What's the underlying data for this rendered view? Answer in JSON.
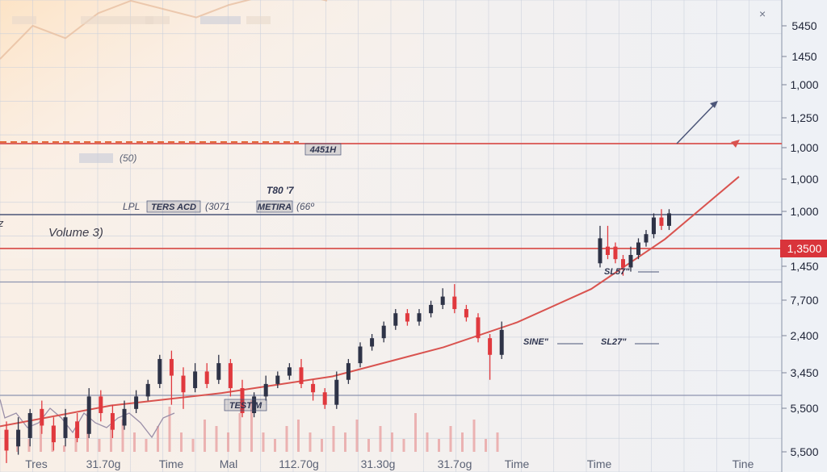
{
  "header": {
    "top_labels": [
      "",
      "",
      "",
      ""
    ],
    "close_glyph": "×"
  },
  "annotations": {
    "volume_label": "Volume 3)",
    "tag_1": "4451H",
    "tag_2": "T80 '7",
    "legend_left_prefix": "LPL",
    "legend_left_tag": "TERS ACD",
    "legend_left_value": "(3071",
    "legend_right_tag": "METIRA",
    "legend_right_value": "(66º",
    "small_mid": "(50)",
    "marker_1": "SL57\"",
    "marker_2": "SINE\"",
    "marker_3": "SL27\"",
    "testim_tag": "TESTIM",
    "left_cut": "z"
  },
  "y_axis": {
    "ticks": [
      "5450",
      "1450",
      "1,000",
      "1,250",
      "1,000",
      "1,000",
      "1,000",
      "1,3500",
      "1,450",
      "7,700",
      "2,400",
      "3,450",
      "5,500",
      "5,500"
    ],
    "highlight_index": 7
  },
  "x_axis": {
    "ticks": [
      "Tres",
      "31.70g",
      "Time",
      "Mal",
      "112.70g",
      "31.30g",
      "31.7og",
      "Time",
      "Time",
      "Tine"
    ]
  },
  "colors": {
    "up": "#2e3347",
    "down": "#e0393e",
    "trend": "#d9534f",
    "grid": "#c9d0dc",
    "volume": "#e9a3a3"
  },
  "chart_data": {
    "type": "candlestick",
    "candles": [
      {
        "o": 1300,
        "c": 1250,
        "h": 1320,
        "l": 1220
      },
      {
        "o": 1260,
        "c": 1300,
        "h": 1330,
        "l": 1240
      },
      {
        "o": 1280,
        "c": 1340,
        "h": 1350,
        "l": 1260
      },
      {
        "o": 1350,
        "c": 1310,
        "h": 1370,
        "l": 1290
      },
      {
        "o": 1310,
        "c": 1270,
        "h": 1330,
        "l": 1250
      },
      {
        "o": 1280,
        "c": 1330,
        "h": 1350,
        "l": 1260
      },
      {
        "o": 1320,
        "c": 1280,
        "h": 1340,
        "l": 1270
      },
      {
        "o": 1290,
        "c": 1380,
        "h": 1400,
        "l": 1280
      },
      {
        "o": 1380,
        "c": 1340,
        "h": 1395,
        "l": 1320
      },
      {
        "o": 1340,
        "c": 1300,
        "h": 1360,
        "l": 1280
      },
      {
        "o": 1310,
        "c": 1350,
        "h": 1370,
        "l": 1300
      },
      {
        "o": 1350,
        "c": 1380,
        "h": 1395,
        "l": 1340
      },
      {
        "o": 1380,
        "c": 1410,
        "h": 1420,
        "l": 1370
      },
      {
        "o": 1410,
        "c": 1470,
        "h": 1480,
        "l": 1400
      },
      {
        "o": 1470,
        "c": 1430,
        "h": 1490,
        "l": 1360
      },
      {
        "o": 1430,
        "c": 1390,
        "h": 1450,
        "l": 1350
      },
      {
        "o": 1400,
        "c": 1440,
        "h": 1460,
        "l": 1390
      },
      {
        "o": 1440,
        "c": 1410,
        "h": 1460,
        "l": 1400
      },
      {
        "o": 1420,
        "c": 1460,
        "h": 1480,
        "l": 1410
      },
      {
        "o": 1460,
        "c": 1400,
        "h": 1470,
        "l": 1380
      },
      {
        "o": 1400,
        "c": 1340,
        "h": 1420,
        "l": 1330
      },
      {
        "o": 1340,
        "c": 1380,
        "h": 1390,
        "l": 1330
      },
      {
        "o": 1380,
        "c": 1410,
        "h": 1430,
        "l": 1370
      },
      {
        "o": 1410,
        "c": 1430,
        "h": 1440,
        "l": 1400
      },
      {
        "o": 1430,
        "c": 1450,
        "h": 1460,
        "l": 1420
      },
      {
        "o": 1450,
        "c": 1410,
        "h": 1470,
        "l": 1400
      },
      {
        "o": 1410,
        "c": 1390,
        "h": 1420,
        "l": 1370
      },
      {
        "o": 1390,
        "c": 1360,
        "h": 1400,
        "l": 1350
      },
      {
        "o": 1360,
        "c": 1420,
        "h": 1440,
        "l": 1350
      },
      {
        "o": 1420,
        "c": 1460,
        "h": 1470,
        "l": 1410
      },
      {
        "o": 1460,
        "c": 1500,
        "h": 1510,
        "l": 1450
      },
      {
        "o": 1500,
        "c": 1520,
        "h": 1530,
        "l": 1490
      },
      {
        "o": 1520,
        "c": 1550,
        "h": 1560,
        "l": 1510
      },
      {
        "o": 1550,
        "c": 1580,
        "h": 1590,
        "l": 1540
      },
      {
        "o": 1580,
        "c": 1560,
        "h": 1590,
        "l": 1550
      },
      {
        "o": 1560,
        "c": 1580,
        "h": 1590,
        "l": 1550
      },
      {
        "o": 1580,
        "c": 1600,
        "h": 1610,
        "l": 1570
      },
      {
        "o": 1600,
        "c": 1620,
        "h": 1640,
        "l": 1590
      },
      {
        "o": 1620,
        "c": 1590,
        "h": 1650,
        "l": 1580
      },
      {
        "o": 1590,
        "c": 1570,
        "h": 1600,
        "l": 1560
      },
      {
        "o": 1570,
        "c": 1520,
        "h": 1580,
        "l": 1510
      },
      {
        "o": 1520,
        "c": 1480,
        "h": 1530,
        "l": 1420
      },
      {
        "o": 1480,
        "c": 1540,
        "h": 1560,
        "l": 1470
      }
    ],
    "candles_late": [
      {
        "o": 1700,
        "c": 1760,
        "h": 1790,
        "l": 1690
      },
      {
        "o": 1740,
        "c": 1720,
        "h": 1790,
        "l": 1710
      },
      {
        "o": 1740,
        "c": 1710,
        "h": 1750,
        "l": 1700
      },
      {
        "o": 1710,
        "c": 1690,
        "h": 1720,
        "l": 1670
      },
      {
        "o": 1690,
        "c": 1720,
        "h": 1740,
        "l": 1680
      },
      {
        "o": 1720,
        "c": 1750,
        "h": 1760,
        "l": 1710
      },
      {
        "o": 1750,
        "c": 1770,
        "h": 1780,
        "l": 1740
      },
      {
        "o": 1770,
        "c": 1810,
        "h": 1820,
        "l": 1760
      },
      {
        "o": 1810,
        "c": 1790,
        "h": 1830,
        "l": 1780
      },
      {
        "o": 1790,
        "c": 1820,
        "h": 1830,
        "l": 1780
      }
    ],
    "trend": [
      [
        0,
        1250
      ],
      [
        0.15,
        1300
      ],
      [
        0.3,
        1330
      ],
      [
        0.45,
        1370
      ],
      [
        0.6,
        1440
      ],
      [
        0.7,
        1500
      ],
      [
        0.8,
        1580
      ],
      [
        0.9,
        1700
      ],
      [
        1.0,
        1850
      ]
    ],
    "ghost_line": [
      [
        0,
        1900
      ],
      [
        0.05,
        1980
      ],
      [
        0.1,
        1950
      ],
      [
        0.15,
        2010
      ],
      [
        0.2,
        2040
      ],
      [
        0.25,
        2020
      ],
      [
        0.3,
        2000
      ],
      [
        0.35,
        2030
      ],
      [
        0.4,
        2050
      ],
      [
        0.45,
        2060
      ],
      [
        0.5,
        2040
      ]
    ],
    "volume": [
      3,
      2,
      5,
      4,
      1,
      3,
      6,
      2,
      4,
      5,
      3,
      2,
      4,
      7,
      3,
      2,
      5,
      4,
      3,
      6,
      8,
      3,
      2,
      4,
      5,
      3,
      2,
      4,
      3,
      5,
      2,
      4,
      3,
      2,
      6,
      3,
      2,
      4,
      3,
      5,
      2,
      3
    ],
    "ylim": [
      1150,
      2100
    ],
    "hlines": [
      {
        "v": 1860,
        "color": "red"
      },
      {
        "v": 1620,
        "color": "navy"
      },
      {
        "v": 1700,
        "color": "red"
      }
    ]
  }
}
